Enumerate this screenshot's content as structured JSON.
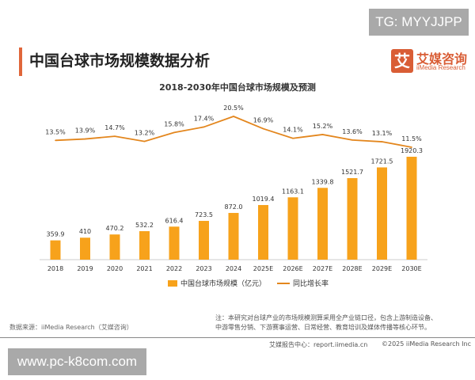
{
  "watermark_top": "TG: MYYJJPP",
  "watermark_bottom": "www.pc-k8com.com",
  "page_title": "中国台球市场规模数据分析",
  "logo": {
    "cn": "艾媒咨询",
    "en": "iiMedia Research",
    "mark": "艾"
  },
  "colors": {
    "bar": "#f7a21b",
    "line": "#e3861d",
    "accent": "#e0663a"
  },
  "source": "数据来源：iiMedia Research（艾媒咨询）",
  "note_lines": [
    "注：本研究对台球产业的市场规模测算采用全产业链口径，包含上游制造设备、",
    "中游零售分销、下游赛事运营、日常经营、教育培训及媒体传播等核心环节。"
  ],
  "footer": {
    "report": "艾媒报告中心：report.iimedia.cn",
    "copyright": "©2025  iiMedia Research  Inc"
  },
  "chart_data": {
    "type": "bar+line",
    "title": "2018-2030年中国台球市场规模及预测",
    "categories": [
      "2018",
      "2019",
      "2020",
      "2021",
      "2022",
      "2023",
      "2024",
      "2025E",
      "2026E",
      "2027E",
      "2028E",
      "2029E",
      "2030E"
    ],
    "series": [
      {
        "name": "中国台球市场规模（亿元）",
        "type": "bar",
        "values": [
          359.9,
          410,
          470.2,
          532.2,
          616.4,
          723.5,
          872.0,
          1019.4,
          1163.1,
          1339.8,
          1521.7,
          1721.5,
          1920.3
        ],
        "labels": [
          "359.9",
          "410",
          "470.2",
          "532.2",
          "616.4",
          "723.5",
          "872.0",
          "1019.4",
          "1163.1",
          "1339.8",
          "1521.7",
          "1721.5",
          "1920.3"
        ]
      },
      {
        "name": "同比增长率",
        "type": "line",
        "values": [
          13.5,
          13.9,
          14.7,
          13.2,
          15.8,
          17.4,
          20.5,
          16.9,
          14.1,
          15.2,
          13.6,
          13.1,
          11.5
        ],
        "labels": [
          "13.5%",
          "13.9%",
          "14.7%",
          "13.2%",
          "15.8%",
          "17.4%",
          "20.5%",
          "16.9%",
          "14.1%",
          "15.2%",
          "13.6%",
          "13.1%",
          "11.5%"
        ]
      }
    ],
    "legend_position": "bottom",
    "grid": false
  }
}
